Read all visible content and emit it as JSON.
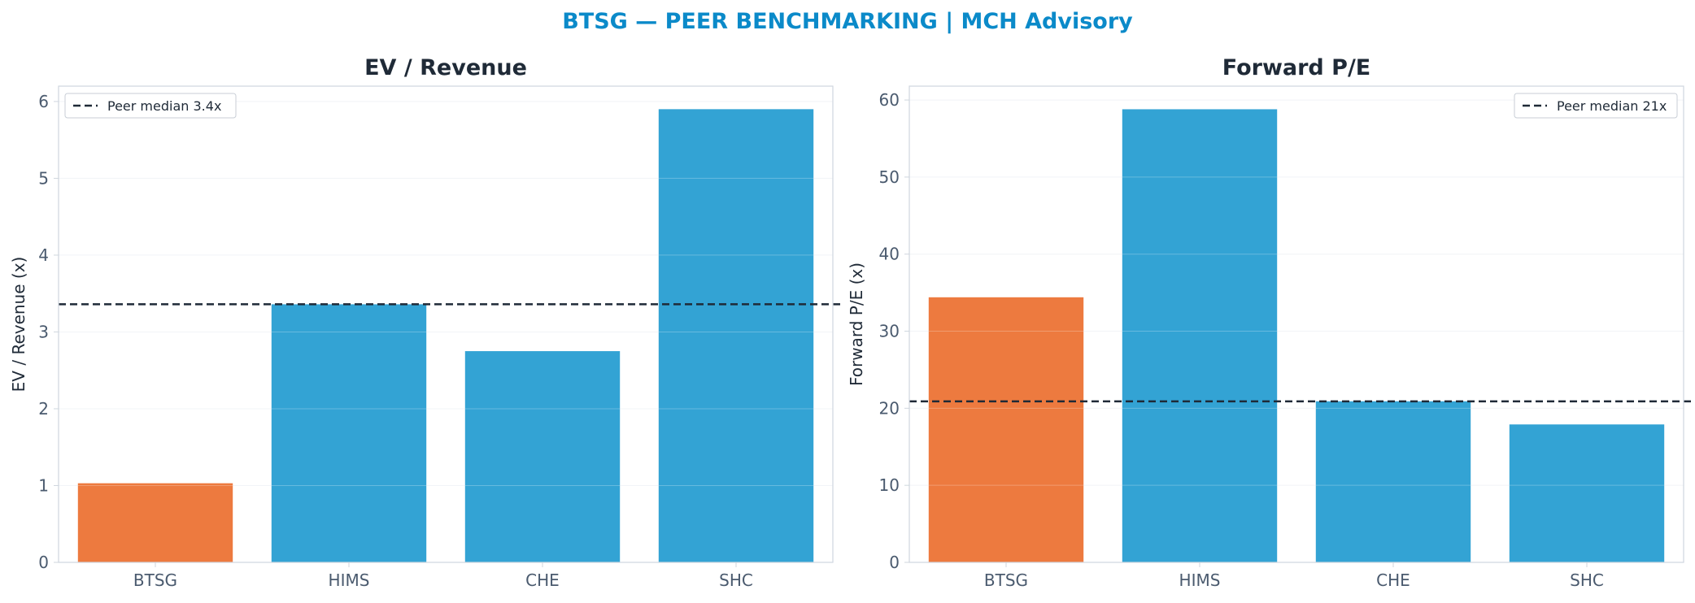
{
  "suptitle": "BTSG — PEER BENCHMARKING | MCH Advisory",
  "colors": {
    "title": "#0b8ac9",
    "highlight": "#ed7a3f",
    "peer": "#33a3d4",
    "median_line": "#1f2a37",
    "grid": "#eef1f4",
    "axes": "#cfd6de"
  },
  "chart_data": [
    {
      "type": "bar",
      "title": "EV / Revenue",
      "ylabel": "EV / Revenue (x)",
      "categories": [
        "BTSG",
        "HIMS",
        "CHE",
        "SHC"
      ],
      "values": [
        1.03,
        3.36,
        2.75,
        5.9
      ],
      "highlight": "BTSG",
      "ylim": [
        0,
        6.2
      ],
      "yticks": [
        0,
        1,
        2,
        3,
        4,
        5,
        6
      ],
      "reference_line": {
        "value": 3.36,
        "label": "Peer median 3.4x",
        "style": "dashed"
      },
      "legend": "top-left",
      "grid": true
    },
    {
      "type": "bar",
      "title": "Forward P/E",
      "ylabel": "Forward P/E (x)",
      "categories": [
        "BTSG",
        "HIMS",
        "CHE",
        "SHC"
      ],
      "values": [
        34.4,
        58.8,
        20.9,
        17.9
      ],
      "highlight": "BTSG",
      "ylim": [
        0,
        61.8
      ],
      "yticks": [
        0,
        10,
        20,
        30,
        40,
        50,
        60
      ],
      "reference_line": {
        "value": 20.9,
        "label": "Peer median 21x",
        "style": "dashed"
      },
      "legend": "top-right",
      "grid": true
    }
  ]
}
